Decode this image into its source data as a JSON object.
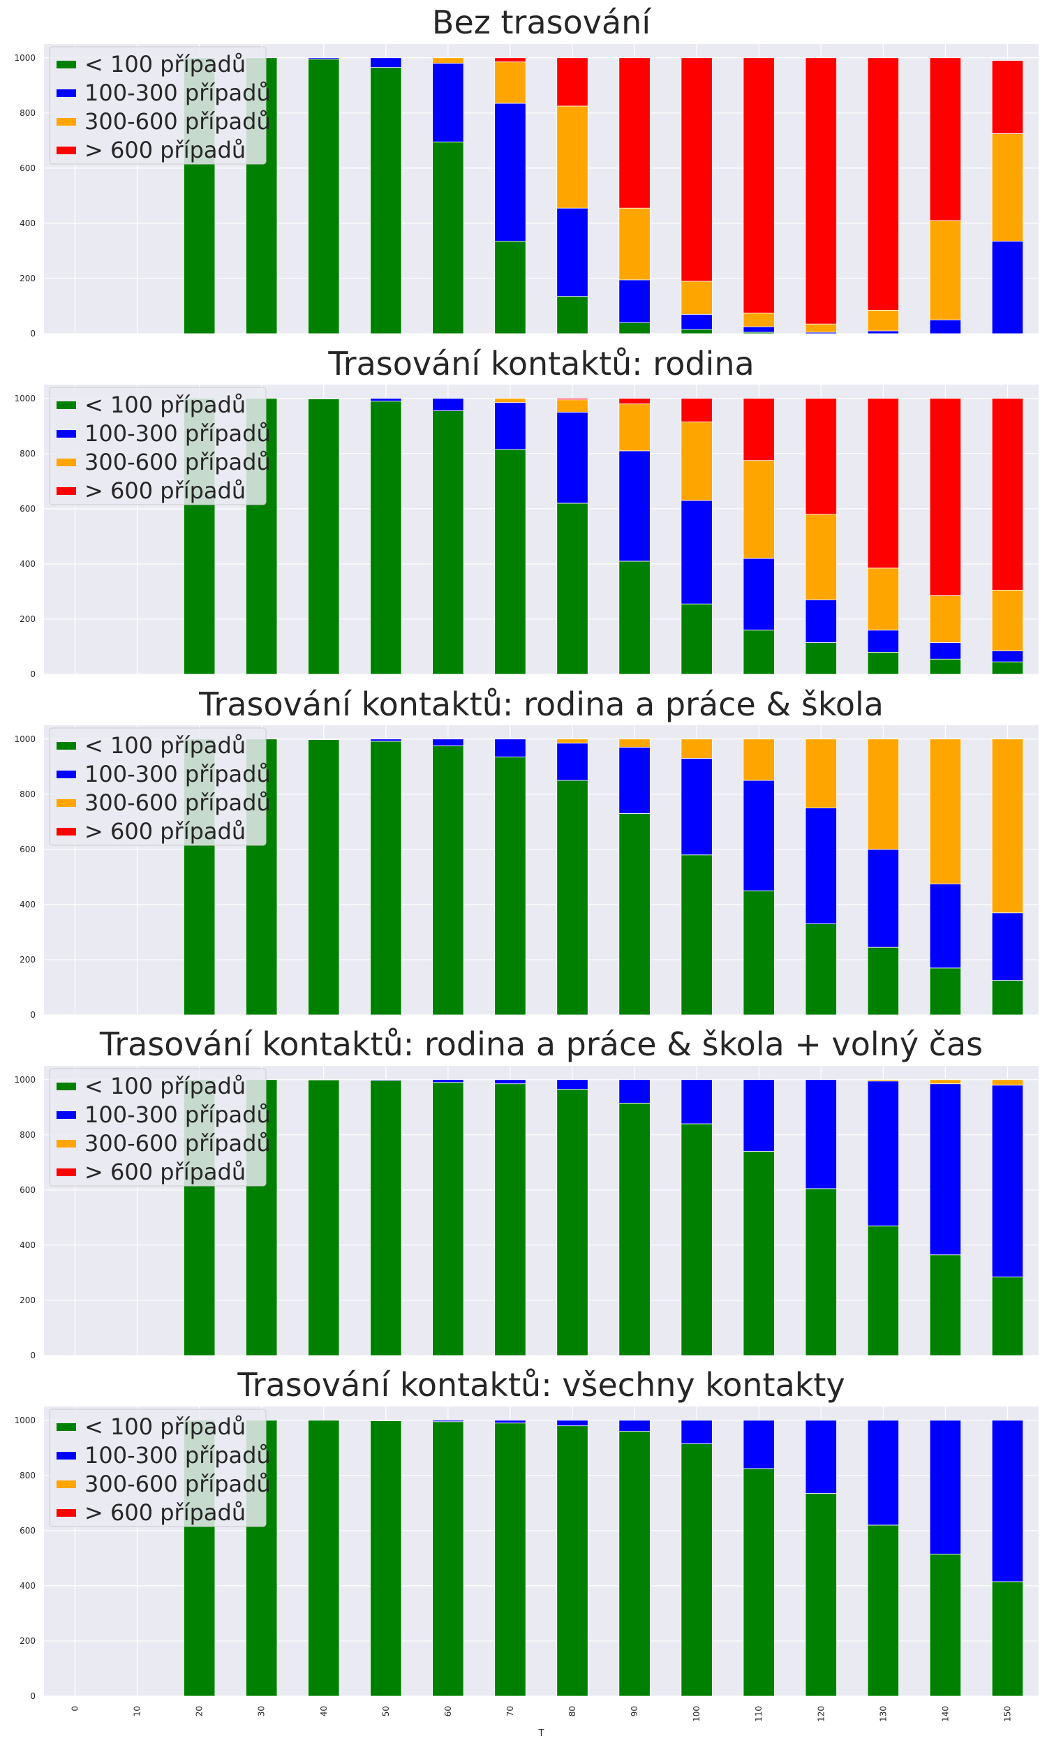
{
  "colors": {
    "lt100": "#008000",
    "r100_300": "#0000ff",
    "r300_600": "#ffa500",
    "gt600": "#ff0000",
    "plot_bg": "#eaeaf2",
    "grid": "#ffffff"
  },
  "chart_data": [
    {
      "type": "bar",
      "stacked": true,
      "title": "Bez trasování",
      "xlabel": "",
      "ylabel": "",
      "ylim": [
        0,
        1050
      ],
      "yticks": [
        0,
        200,
        400,
        600,
        800,
        1000
      ],
      "categories": [
        "0",
        "10",
        "20",
        "30",
        "40",
        "50",
        "60",
        "70",
        "80",
        "90",
        "100",
        "110",
        "120",
        "130",
        "140",
        "150"
      ],
      "legend": "top-left",
      "series": [
        {
          "name": "< 100 případů",
          "color": "lt100",
          "values": [
            0,
            0,
            1000,
            1000,
            995,
            965,
            695,
            335,
            135,
            40,
            15,
            5,
            0,
            0,
            0,
            0
          ]
        },
        {
          "name": "100-300 případů",
          "color": "r100_300",
          "values": [
            0,
            0,
            0,
            0,
            5,
            35,
            285,
            500,
            320,
            155,
            55,
            20,
            5,
            10,
            50,
            335
          ]
        },
        {
          "name": "300-600 případů",
          "color": "r300_600",
          "values": [
            0,
            0,
            0,
            0,
            0,
            0,
            20,
            150,
            370,
            260,
            120,
            50,
            30,
            75,
            360,
            390
          ]
        },
        {
          "name": "> 600 případů",
          "color": "gt600",
          "values": [
            0,
            0,
            0,
            0,
            0,
            0,
            0,
            15,
            175,
            545,
            810,
            925,
            965,
            915,
            590,
            265
          ]
        }
      ]
    },
    {
      "type": "bar",
      "stacked": true,
      "title": "Trasování kontaktů: rodina",
      "xlabel": "",
      "ylabel": "",
      "ylim": [
        0,
        1050
      ],
      "yticks": [
        0,
        200,
        400,
        600,
        800,
        1000
      ],
      "categories": [
        "0",
        "10",
        "20",
        "30",
        "40",
        "50",
        "60",
        "70",
        "80",
        "90",
        "100",
        "110",
        "120",
        "130",
        "140",
        "150"
      ],
      "legend": "top-left",
      "series": [
        {
          "name": "< 100 případů",
          "color": "lt100",
          "values": [
            0,
            0,
            1000,
            1000,
            998,
            990,
            955,
            815,
            620,
            410,
            255,
            160,
            115,
            80,
            55,
            45
          ]
        },
        {
          "name": "100-300 případů",
          "color": "r100_300",
          "values": [
            0,
            0,
            0,
            0,
            2,
            10,
            45,
            170,
            330,
            400,
            375,
            260,
            155,
            80,
            60,
            40
          ]
        },
        {
          "name": "300-600 případů",
          "color": "r300_600",
          "values": [
            0,
            0,
            0,
            0,
            0,
            0,
            0,
            15,
            45,
            170,
            285,
            355,
            310,
            225,
            170,
            220
          ]
        },
        {
          "name": "> 600 případů",
          "color": "gt600",
          "values": [
            0,
            0,
            0,
            0,
            0,
            0,
            0,
            0,
            5,
            20,
            85,
            225,
            420,
            615,
            715,
            695
          ]
        }
      ]
    },
    {
      "type": "bar",
      "stacked": true,
      "title": "Trasování kontaktů: rodina a práce & škola",
      "xlabel": "",
      "ylabel": "",
      "ylim": [
        0,
        1050
      ],
      "yticks": [
        0,
        200,
        400,
        600,
        800,
        1000
      ],
      "categories": [
        "0",
        "10",
        "20",
        "30",
        "40",
        "50",
        "60",
        "70",
        "80",
        "90",
        "100",
        "110",
        "120",
        "130",
        "140",
        "150"
      ],
      "legend": "top-left",
      "series": [
        {
          "name": "< 100 případů",
          "color": "lt100",
          "values": [
            0,
            0,
            1000,
            1000,
            998,
            992,
            975,
            935,
            850,
            730,
            580,
            450,
            330,
            245,
            170,
            125
          ]
        },
        {
          "name": "100-300 případů",
          "color": "r100_300",
          "values": [
            0,
            0,
            0,
            0,
            2,
            8,
            25,
            65,
            135,
            240,
            350,
            400,
            420,
            355,
            305,
            245
          ]
        },
        {
          "name": "300-600 případů",
          "color": "r300_600",
          "values": [
            0,
            0,
            0,
            0,
            0,
            0,
            0,
            0,
            15,
            30,
            70,
            150,
            250,
            400,
            525,
            630
          ]
        },
        {
          "name": "> 600 případů",
          "color": "gt600",
          "values": [
            0,
            0,
            0,
            0,
            0,
            0,
            0,
            0,
            0,
            0,
            0,
            0,
            0,
            0,
            0,
            0
          ]
        }
      ]
    },
    {
      "type": "bar",
      "stacked": true,
      "title": "Trasování kontaktů: rodina a práce & škola + volný čas",
      "xlabel": "",
      "ylabel": "",
      "ylim": [
        0,
        1050
      ],
      "yticks": [
        0,
        200,
        400,
        600,
        800,
        1000
      ],
      "categories": [
        "0",
        "10",
        "20",
        "30",
        "40",
        "50",
        "60",
        "70",
        "80",
        "90",
        "100",
        "110",
        "120",
        "130",
        "140",
        "150"
      ],
      "legend": "top-left",
      "series": [
        {
          "name": "< 100 případů",
          "color": "lt100",
          "values": [
            0,
            0,
            1000,
            1000,
            999,
            997,
            990,
            985,
            965,
            915,
            840,
            740,
            605,
            470,
            365,
            285
          ]
        },
        {
          "name": "100-300 případů",
          "color": "r100_300",
          "values": [
            0,
            0,
            0,
            0,
            1,
            3,
            10,
            15,
            35,
            85,
            160,
            260,
            395,
            525,
            620,
            695
          ]
        },
        {
          "name": "300-600 případů",
          "color": "r300_600",
          "values": [
            0,
            0,
            0,
            0,
            0,
            0,
            0,
            0,
            0,
            0,
            0,
            0,
            0,
            5,
            15,
            20
          ]
        },
        {
          "name": "> 600 případů",
          "color": "gt600",
          "values": [
            0,
            0,
            0,
            0,
            0,
            0,
            0,
            0,
            0,
            0,
            0,
            0,
            0,
            0,
            0,
            0
          ]
        }
      ]
    },
    {
      "type": "bar",
      "stacked": true,
      "title": "Trasování kontaktů: všechny kontakty",
      "xlabel": "T",
      "ylabel": "",
      "ylim": [
        0,
        1050
      ],
      "yticks": [
        0,
        200,
        400,
        600,
        800,
        1000
      ],
      "categories": [
        "0",
        "10",
        "20",
        "30",
        "40",
        "50",
        "60",
        "70",
        "80",
        "90",
        "100",
        "110",
        "120",
        "130",
        "140",
        "150"
      ],
      "legend": "top-left",
      "series": [
        {
          "name": "< 100 případů",
          "color": "lt100",
          "values": [
            0,
            0,
            1000,
            1000,
            1000,
            998,
            995,
            990,
            980,
            960,
            915,
            825,
            735,
            620,
            515,
            415
          ]
        },
        {
          "name": "100-300 případů",
          "color": "r100_300",
          "values": [
            0,
            0,
            0,
            0,
            0,
            2,
            5,
            10,
            20,
            40,
            85,
            175,
            265,
            380,
            485,
            585
          ]
        },
        {
          "name": "300-600 případů",
          "color": "r300_600",
          "values": [
            0,
            0,
            0,
            0,
            0,
            0,
            0,
            0,
            0,
            0,
            0,
            0,
            0,
            0,
            0,
            0
          ]
        },
        {
          "name": "> 600 případů",
          "color": "gt600",
          "values": [
            0,
            0,
            0,
            0,
            0,
            0,
            0,
            0,
            0,
            0,
            0,
            0,
            0,
            0,
            0,
            0
          ]
        }
      ]
    }
  ]
}
